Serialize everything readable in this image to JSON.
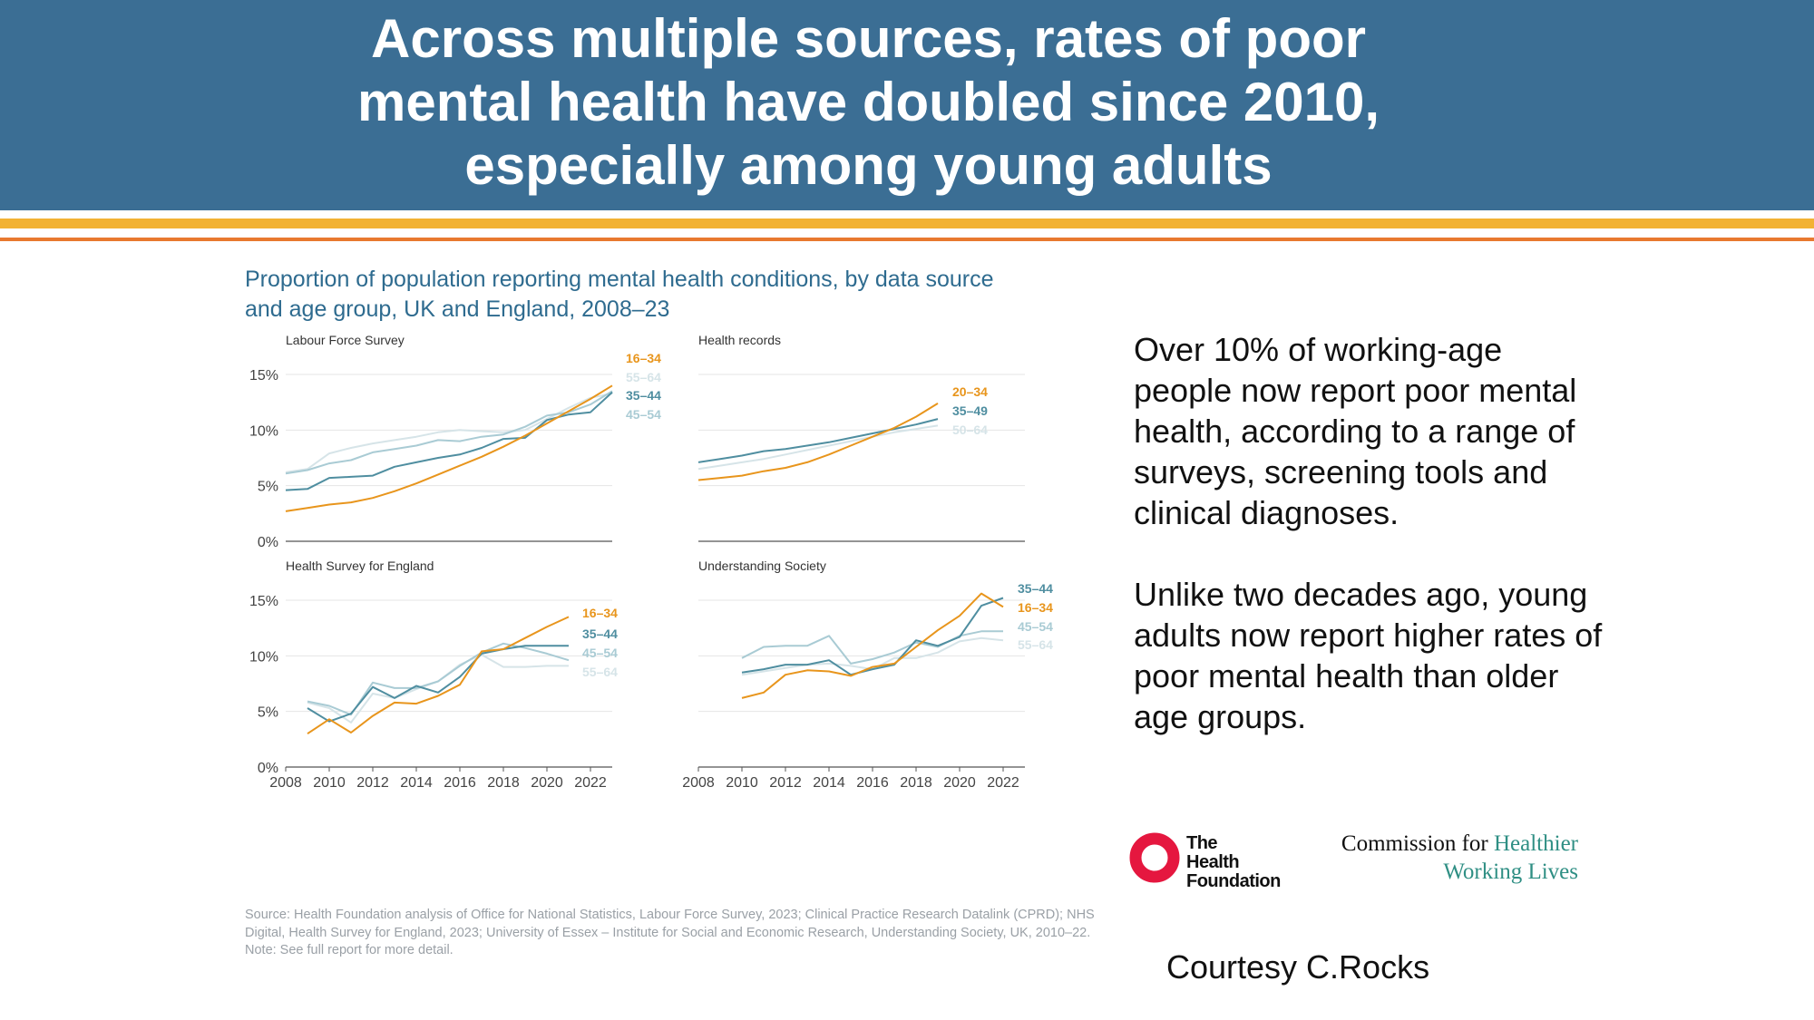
{
  "slide": {
    "title_line1": "Across multiple sources, rates of poor",
    "title_line2": "mental health have doubled since 2010,",
    "title_line3": "especially among young adults",
    "chart_title_line1": "Proportion of population reporting mental health conditions, by data source",
    "chart_title_line2": "and age group, UK and England, 2008–23",
    "text_para1": "Over 10% of working-age people now report poor mental health, according to a range of surveys, screening tools and clinical diagnoses.",
    "text_para2": "Unlike two decades ago, young adults now report higher rates of poor mental health than older age groups.",
    "source_note": "Source: Health Foundation analysis of Office for National Statistics, Labour Force Survey, 2023; Clinical Practice Research Datalink (CPRD); NHS Digital, Health Survey for England, 2023; University of Essex – Institute for Social and Economic Research, Understanding Society, UK, 2010–22. Note: See full report for more detail.",
    "courtesy": "Courtesy C.Rocks",
    "logo_hf_line1": "The",
    "logo_hf_line2": "Health",
    "logo_hf_line3": "Foundation",
    "logo_cwl_line1_a": "Commission for",
    "logo_cwl_line1_b": "Healthier",
    "logo_cwl_line2": "Working Lives"
  },
  "colors": {
    "header_bg": "#3b6e94",
    "stripe_gold": "#f2b233",
    "stripe_orange": "#e8792f",
    "series_orange": "#e8951c",
    "series_teal": "#4f8ea0",
    "series_light": "#a9cbd4",
    "series_pale": "#d6e4e8",
    "logo_red": "#e5173f"
  },
  "chart_data": [
    {
      "type": "line",
      "title": "Labour Force Survey",
      "xlabel": "",
      "ylabel": "",
      "xlim": [
        2008,
        2023
      ],
      "ylim": [
        0,
        15
      ],
      "yticks": [
        "0%",
        "5%",
        "10%",
        "15%"
      ],
      "xticks": [],
      "series": [
        {
          "name": "55–64",
          "x": [
            2008,
            2009,
            2010,
            2011,
            2012,
            2013,
            2014,
            2015,
            2016,
            2017,
            2018,
            2019,
            2020,
            2021,
            2022,
            2023
          ],
          "values": [
            6.2,
            6.5,
            7.9,
            8.4,
            8.8,
            9.1,
            9.4,
            9.8,
            10.0,
            9.9,
            9.8,
            10.0,
            11.0,
            12.0,
            12.9,
            13.3
          ]
        },
        {
          "name": "45–54",
          "x": [
            2008,
            2009,
            2010,
            2011,
            2012,
            2013,
            2014,
            2015,
            2016,
            2017,
            2018,
            2019,
            2020,
            2021,
            2022,
            2023
          ],
          "values": [
            6.1,
            6.4,
            7.0,
            7.3,
            8.0,
            8.3,
            8.6,
            9.1,
            9.0,
            9.4,
            9.6,
            10.3,
            11.3,
            11.6,
            12.3,
            13.5
          ]
        },
        {
          "name": "35–44",
          "x": [
            2008,
            2009,
            2010,
            2011,
            2012,
            2013,
            2014,
            2015,
            2016,
            2017,
            2018,
            2019,
            2020,
            2021,
            2022,
            2023
          ],
          "values": [
            4.6,
            4.7,
            5.7,
            5.8,
            5.9,
            6.7,
            7.1,
            7.5,
            7.8,
            8.4,
            9.2,
            9.3,
            10.9,
            11.4,
            11.6,
            13.4
          ]
        },
        {
          "name": "16–34",
          "x": [
            2008,
            2009,
            2010,
            2011,
            2012,
            2013,
            2014,
            2015,
            2016,
            2017,
            2018,
            2019,
            2020,
            2021,
            2022,
            2023
          ],
          "values": [
            2.7,
            3.0,
            3.3,
            3.5,
            3.9,
            4.5,
            5.2,
            6.0,
            6.8,
            7.6,
            8.5,
            9.5,
            10.6,
            11.7,
            12.8,
            14.0
          ]
        }
      ]
    },
    {
      "type": "line",
      "title": "Health records",
      "xlabel": "",
      "ylabel": "",
      "xlim": [
        2008,
        2023
      ],
      "ylim": [
        0,
        15
      ],
      "yticks": [],
      "xticks": [],
      "series": [
        {
          "name": "50–64",
          "x": [
            2008,
            2009,
            2010,
            2011,
            2012,
            2013,
            2014,
            2015,
            2016,
            2017,
            2018,
            2019
          ],
          "values": [
            6.5,
            6.8,
            7.1,
            7.4,
            7.8,
            8.2,
            8.6,
            9.0,
            9.4,
            9.8,
            10.1,
            10.4
          ]
        },
        {
          "name": "35–49",
          "x": [
            2008,
            2009,
            2010,
            2011,
            2012,
            2013,
            2014,
            2015,
            2016,
            2017,
            2018,
            2019
          ],
          "values": [
            7.1,
            7.4,
            7.7,
            8.1,
            8.3,
            8.6,
            8.9,
            9.3,
            9.7,
            10.1,
            10.5,
            11.0
          ]
        },
        {
          "name": "20–34",
          "x": [
            2008,
            2009,
            2010,
            2011,
            2012,
            2013,
            2014,
            2015,
            2016,
            2017,
            2018,
            2019
          ],
          "values": [
            5.5,
            5.7,
            5.9,
            6.3,
            6.6,
            7.1,
            7.8,
            8.6,
            9.4,
            10.2,
            11.2,
            12.4
          ]
        }
      ]
    },
    {
      "type": "line",
      "title": "Health Survey for England",
      "xlabel": "",
      "ylabel": "",
      "xlim": [
        2008,
        2023
      ],
      "ylim": [
        0,
        15
      ],
      "yticks": [
        "0%",
        "5%",
        "10%",
        "15%"
      ],
      "xticks": [
        "2008",
        "2010",
        "2012",
        "2014",
        "2016",
        "2018",
        "2020",
        "2022"
      ],
      "series": [
        {
          "name": "55–64",
          "x": [
            2009,
            2010,
            2011,
            2012,
            2013,
            2014,
            2015,
            2016,
            2017,
            2018,
            2019,
            2020,
            2021
          ],
          "values": [
            5.8,
            5.3,
            4.0,
            6.6,
            6.2,
            7.0,
            7.7,
            9.2,
            10.1,
            9.0,
            9.0,
            9.1,
            9.1
          ]
        },
        {
          "name": "45–54",
          "x": [
            2009,
            2010,
            2011,
            2012,
            2013,
            2014,
            2015,
            2016,
            2017,
            2018,
            2019,
            2020,
            2021
          ],
          "values": [
            5.9,
            5.5,
            4.7,
            7.6,
            7.1,
            7.1,
            7.7,
            9.1,
            10.3,
            11.1,
            10.7,
            10.2,
            9.6
          ]
        },
        {
          "name": "35–44",
          "x": [
            2009,
            2010,
            2011,
            2012,
            2013,
            2014,
            2015,
            2016,
            2017,
            2018,
            2019,
            2020,
            2021
          ],
          "values": [
            5.3,
            4.1,
            4.8,
            7.2,
            6.2,
            7.3,
            6.7,
            8.1,
            10.2,
            10.6,
            10.9,
            10.9,
            10.9
          ]
        },
        {
          "name": "16–34",
          "x": [
            2009,
            2010,
            2011,
            2012,
            2013,
            2014,
            2015,
            2016,
            2017,
            2018,
            2019,
            2020,
            2021
          ],
          "values": [
            3.0,
            4.3,
            3.1,
            4.6,
            5.8,
            5.7,
            6.4,
            7.4,
            10.4,
            10.6,
            11.6,
            12.6,
            13.5
          ]
        }
      ]
    },
    {
      "type": "line",
      "title": "Understanding Society",
      "xlabel": "",
      "ylabel": "",
      "xlim": [
        2008,
        2023
      ],
      "ylim": [
        0,
        15
      ],
      "yticks": [],
      "xticks": [
        "2008",
        "2010",
        "2012",
        "2014",
        "2016",
        "2018",
        "2020",
        "2022"
      ],
      "series": [
        {
          "name": "55–64",
          "x": [
            2010,
            2011,
            2012,
            2013,
            2014,
            2015,
            2016,
            2017,
            2018,
            2019,
            2020,
            2021,
            2022
          ],
          "values": [
            8.3,
            8.6,
            8.9,
            9.2,
            9.3,
            9.1,
            8.8,
            9.8,
            9.8,
            10.3,
            11.3,
            11.6,
            11.4
          ]
        },
        {
          "name": "45–54",
          "x": [
            2010,
            2011,
            2012,
            2013,
            2014,
            2015,
            2016,
            2017,
            2018,
            2019,
            2020,
            2021,
            2022
          ],
          "values": [
            9.8,
            10.8,
            10.9,
            10.9,
            11.8,
            9.3,
            9.7,
            10.3,
            11.2,
            10.8,
            11.8,
            12.2,
            12.2
          ]
        },
        {
          "name": "35–44",
          "x": [
            2010,
            2011,
            2012,
            2013,
            2014,
            2015,
            2016,
            2017,
            2018,
            2019,
            2020,
            2021,
            2022
          ],
          "values": [
            8.5,
            8.8,
            9.2,
            9.2,
            9.6,
            8.3,
            8.8,
            9.2,
            11.4,
            10.9,
            11.7,
            14.5,
            15.2
          ]
        },
        {
          "name": "16–34",
          "x": [
            2010,
            2011,
            2012,
            2013,
            2014,
            2015,
            2016,
            2017,
            2018,
            2019,
            2020,
            2021,
            2022
          ],
          "values": [
            6.2,
            6.7,
            8.3,
            8.7,
            8.6,
            8.2,
            9.0,
            9.3,
            10.8,
            12.3,
            13.6,
            15.6,
            14.4
          ]
        }
      ]
    }
  ]
}
